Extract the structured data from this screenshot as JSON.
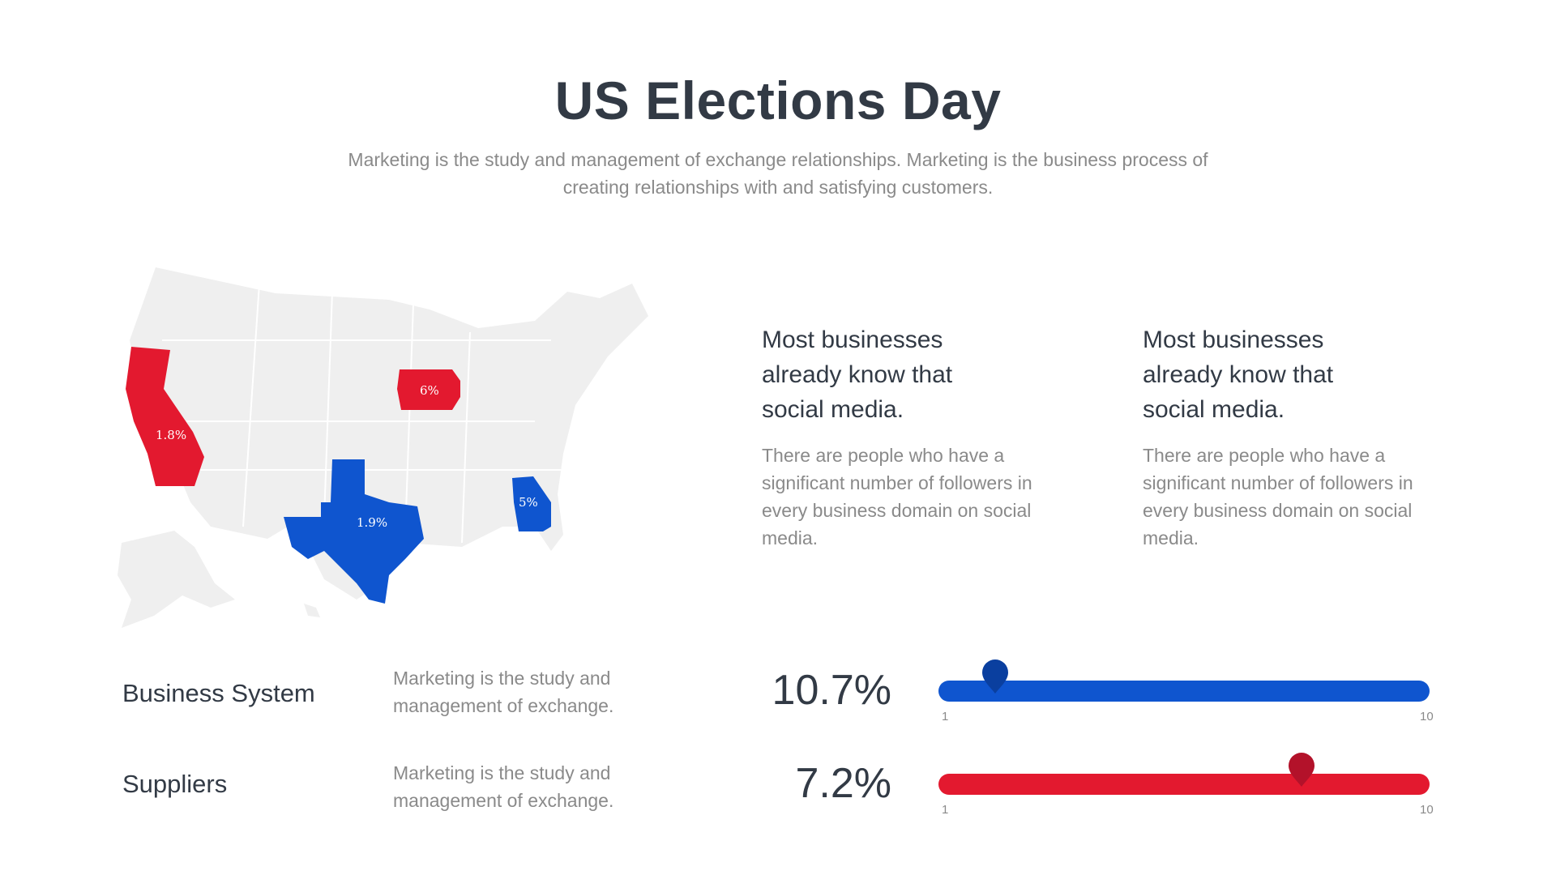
{
  "title": "US Elections Day",
  "subtitle": "Marketing is the study and management of exchange relationships. Marketing is the business process of creating relationships with and satisfying customers.",
  "colors": {
    "red": "#e3192f",
    "blue": "#0f55cf",
    "map_gray": "#efefef",
    "dark_text": "#323a45",
    "muted_text": "#8a8a8a"
  },
  "map": {
    "states": [
      {
        "name": "California",
        "label": "1.8%",
        "color": "red"
      },
      {
        "name": "Iowa",
        "label": "6%",
        "color": "red"
      },
      {
        "name": "Texas",
        "label": "1.9%",
        "color": "blue"
      },
      {
        "name": "Georgia",
        "label": "5%",
        "color": "blue"
      }
    ]
  },
  "info_blocks": [
    {
      "heading": "Most businesses already know that social media.",
      "body": "There are people who have a significant number of followers in every business domain on social media."
    },
    {
      "heading": "Most businesses already know that social media.",
      "body": "There are people who have a significant number of followers in every business domain on social media."
    }
  ],
  "rows": [
    {
      "label": "Business System",
      "desc": "Marketing is the study and management of exchange.",
      "percent": "10.7%",
      "slider_value": 2,
      "min_label": "1",
      "max_label": "10",
      "color": "blue"
    },
    {
      "label": "Suppliers",
      "desc": "Marketing is the study and management of exchange.",
      "percent": "7.2%",
      "slider_value": 8,
      "min_label": "1",
      "max_label": "10",
      "color": "red"
    }
  ]
}
